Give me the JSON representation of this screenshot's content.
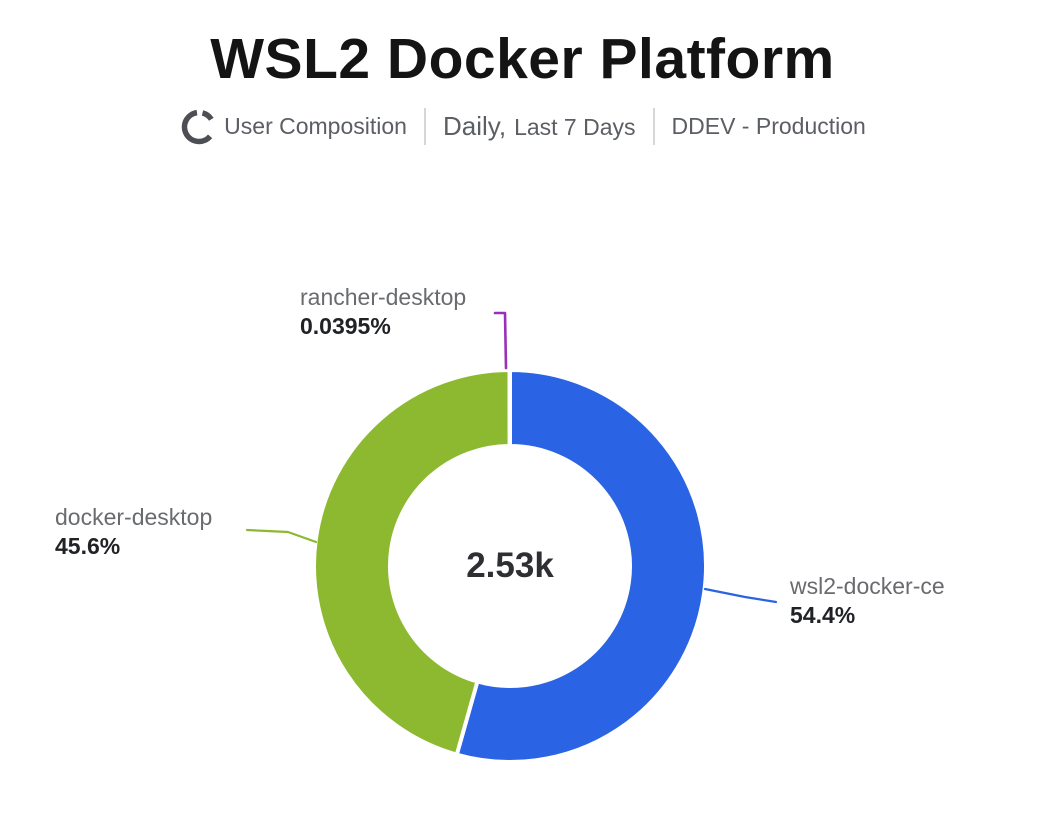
{
  "header": {
    "title": "WSL2 Docker Platform",
    "metric_label": "User Composition",
    "period_primary": "Daily,",
    "period_secondary": "Last 7 Days",
    "environment_label": "DDEV - Production"
  },
  "chart_data": {
    "type": "pie",
    "variant": "donut",
    "title": "WSL2 Docker Platform",
    "subtitle_parts": [
      "User Composition",
      "Daily, Last 7 Days",
      "DDEV - Production"
    ],
    "center_total_label": "2.53k",
    "legend_position": "none",
    "start_angle": "top",
    "direction": "clockwise",
    "inner_radius_ratio": 0.61,
    "slice_border_color": "#ffffff",
    "slices": [
      {
        "name": "wsl2-docker-ce",
        "value_percent": 54.4,
        "percent_label": "54.4%",
        "color": "#2a64e4"
      },
      {
        "name": "docker-desktop",
        "value_percent": 45.6,
        "percent_label": "45.6%",
        "color": "#8cb92f"
      },
      {
        "name": "rancher-desktop",
        "value_percent": 0.0395,
        "percent_label": "0.0395%",
        "color": "#9b30b8"
      }
    ]
  }
}
